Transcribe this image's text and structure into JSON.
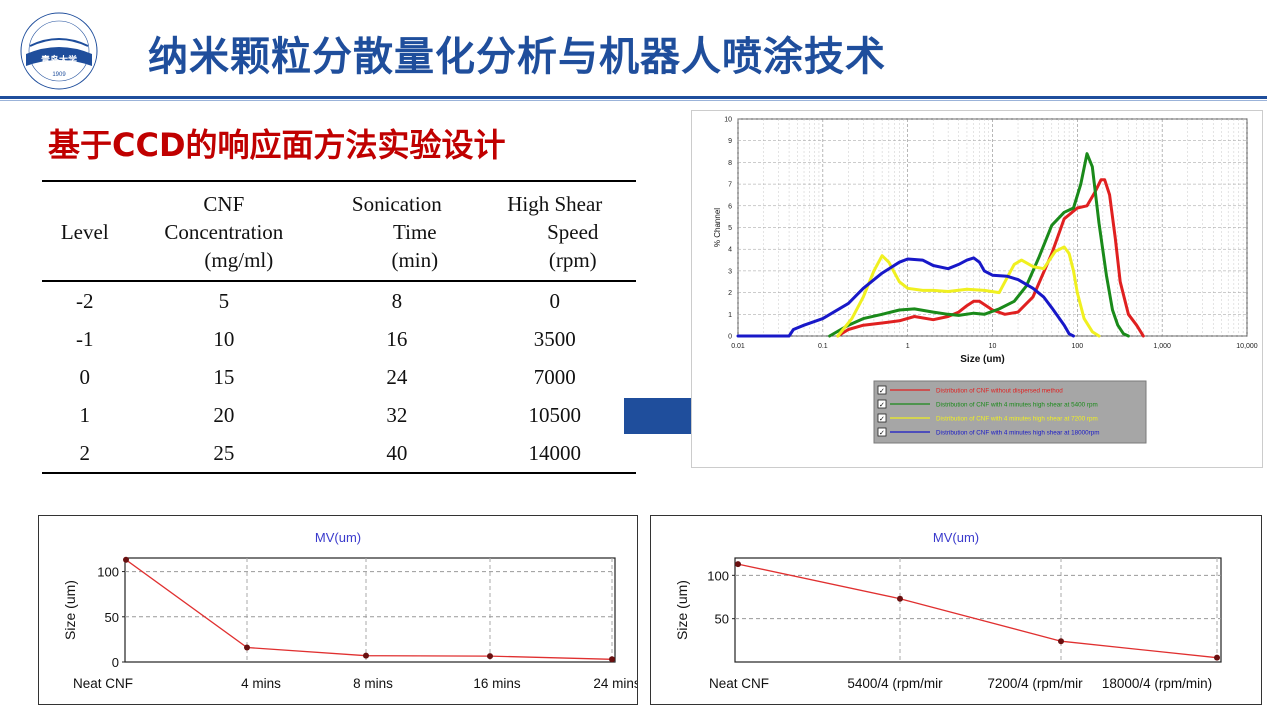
{
  "header": {
    "title": "纳米颗粒分散量化分析与机器人喷涂技术",
    "logo": {
      "text_top": "QINGDAO UNIVERSITY",
      "text_cn": "青岛大学",
      "year": "1909"
    }
  },
  "section": {
    "title": "基于CCD的响应面方法实验设计"
  },
  "design_table": {
    "headers": [
      [
        "Level"
      ],
      [
        "CNF",
        "Concentration",
        "(mg/ml)"
      ],
      [
        "Sonication",
        "Time",
        "(min)"
      ],
      [
        "High Shear",
        "Speed",
        "(rpm)"
      ]
    ],
    "rows": [
      [
        "-2",
        "5",
        "8",
        "0"
      ],
      [
        "-1",
        "10",
        "16",
        "3500"
      ],
      [
        "0",
        "15",
        "24",
        "7000"
      ],
      [
        "1",
        "20",
        "32",
        "10500"
      ],
      [
        "2",
        "25",
        "40",
        "14000"
      ]
    ]
  },
  "colors": {
    "title_blue": "#1f4e9c",
    "section_red": "#c00000",
    "arrow_blue": "#1f4e9c"
  },
  "chart_data": [
    {
      "type": "line",
      "xlabel": "Size (um)",
      "ylabel": "% Channel",
      "xscale": "log",
      "xlim": [
        0.01,
        10000
      ],
      "ylim": [
        0,
        10
      ],
      "x_ticks": [
        "0.01",
        "0.1",
        "1",
        "10",
        "100",
        "1,000",
        "10,000"
      ],
      "y_ticks": [
        "0",
        "1",
        "2",
        "3",
        "4",
        "5",
        "6",
        "7",
        "8",
        "9",
        "10"
      ],
      "grid": true,
      "legend_position": "bottom",
      "series": [
        {
          "name": "Distribution of CNF without dispersed method",
          "color": "#e02020",
          "x": [
            0.15,
            0.2,
            0.3,
            0.5,
            0.8,
            1.2,
            2,
            3,
            4,
            5,
            6,
            7,
            8,
            10,
            14,
            20,
            30,
            50,
            70,
            100,
            130,
            160,
            190,
            210,
            240,
            280,
            320,
            400,
            500,
            600
          ],
          "y": [
            0,
            0.3,
            0.5,
            0.6,
            0.7,
            0.9,
            0.75,
            0.9,
            1.1,
            1.4,
            1.6,
            1.6,
            1.45,
            1.2,
            1.0,
            1.1,
            1.8,
            3.8,
            5.4,
            5.9,
            6.0,
            6.6,
            7.2,
            7.2,
            6.5,
            4.5,
            2.5,
            1.0,
            0.5,
            0
          ]
        },
        {
          "name": "Distribution of CNF with 4 minutes high shear at 5400 rpm",
          "color": "#1a8a1a",
          "x": [
            0.12,
            0.2,
            0.3,
            0.5,
            0.8,
            1.2,
            2,
            3,
            4,
            6,
            8,
            12,
            18,
            25,
            35,
            50,
            70,
            90,
            110,
            130,
            150,
            180,
            220,
            260,
            300,
            350,
            400
          ],
          "y": [
            0,
            0.5,
            0.8,
            1.0,
            1.2,
            1.25,
            1.1,
            1.0,
            0.95,
            1.05,
            1.0,
            1.25,
            1.6,
            2.3,
            3.6,
            5.1,
            5.7,
            5.9,
            7.0,
            8.4,
            7.8,
            5.2,
            2.8,
            1.2,
            0.5,
            0.1,
            0
          ]
        },
        {
          "name": "Distribution of CNF with 4 minutes high shear at 7200 rpm",
          "color": "#f0f020",
          "x": [
            0.15,
            0.22,
            0.3,
            0.4,
            0.5,
            0.6,
            0.8,
            1.0,
            1.5,
            2,
            3,
            5,
            8,
            12,
            18,
            22,
            30,
            40,
            55,
            70,
            80,
            90,
            100,
            120,
            150,
            180
          ],
          "y": [
            0,
            0.8,
            1.8,
            3.0,
            3.7,
            3.4,
            2.5,
            2.2,
            2.1,
            2.1,
            2.05,
            2.15,
            2.1,
            2.0,
            3.3,
            3.5,
            3.2,
            3.1,
            3.9,
            4.1,
            3.8,
            3.0,
            2.0,
            0.8,
            0.2,
            0
          ]
        },
        {
          "name": "Distribution of CNF with 4 minutes high shear at 18000rpm",
          "color": "#1818c8",
          "x": [
            0.01,
            0.03,
            0.04,
            0.045,
            0.06,
            0.1,
            0.2,
            0.3,
            0.5,
            0.8,
            1.0,
            1.5,
            2,
            3,
            4,
            5,
            6,
            7,
            8,
            10,
            15,
            20,
            30,
            40,
            50,
            70,
            80,
            90
          ],
          "y": [
            0,
            0,
            0,
            0.3,
            0.5,
            0.8,
            1.5,
            2.2,
            2.9,
            3.4,
            3.55,
            3.5,
            3.25,
            3.1,
            3.3,
            3.5,
            3.6,
            3.4,
            3.0,
            2.8,
            2.75,
            2.6,
            2.2,
            1.8,
            1.3,
            0.5,
            0.1,
            0
          ]
        }
      ]
    },
    {
      "type": "line",
      "title": "MV(um)",
      "ylabel": "Size (um)",
      "categories": [
        "Neat CNF",
        "4 mins",
        "8 mins",
        "16 mins",
        "24 mins"
      ],
      "y_ticks": [
        "0",
        "50",
        "100"
      ],
      "ylim": [
        0,
        115
      ],
      "grid": true,
      "series": [
        {
          "color": "#e03030",
          "values": [
            113,
            16,
            7,
            6.5,
            3
          ]
        }
      ]
    },
    {
      "type": "line",
      "title": "MV(um)",
      "ylabel": "Size (um)",
      "categories": [
        "Neat CNF",
        "5400/4 (rpm/mir",
        "7200/4 (rpm/mir",
        "18000/4 (rpm/min)"
      ],
      "y_ticks": [
        "50",
        "100"
      ],
      "ylim": [
        0,
        120
      ],
      "grid": true,
      "series": [
        {
          "color": "#e03030",
          "values": [
            113,
            73,
            24,
            5
          ]
        }
      ]
    }
  ]
}
